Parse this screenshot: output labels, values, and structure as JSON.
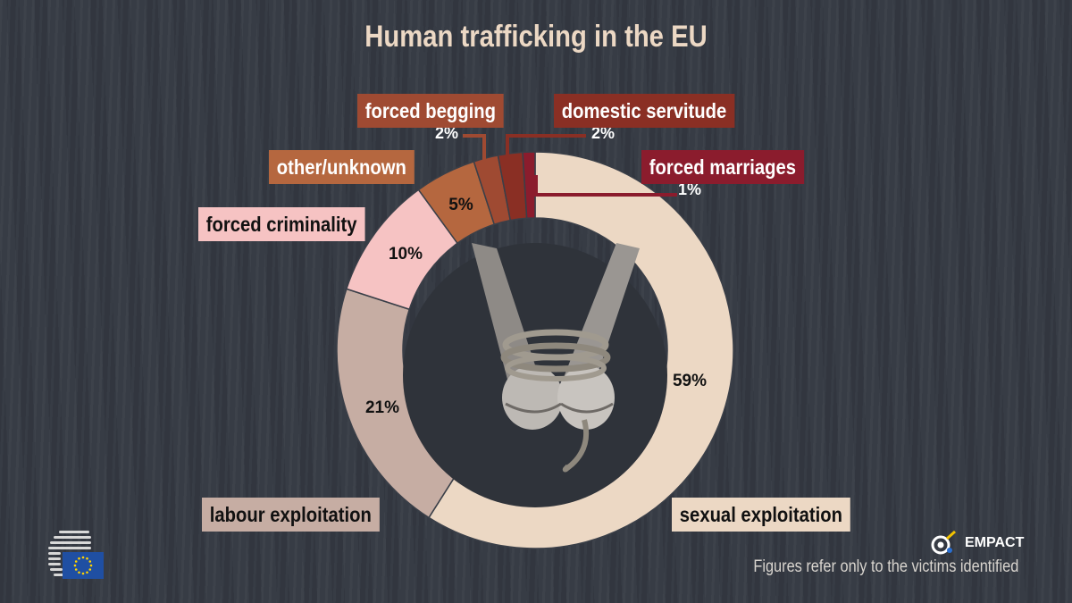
{
  "title": "Human trafficking in the EU",
  "footnote": "Figures refer only to the victims identified",
  "empact_logo_text": "EMPACT",
  "chart_data": {
    "type": "pie",
    "donut": true,
    "title": "Human trafficking in the EU",
    "unit": "%",
    "slices": [
      {
        "label": "sexual exploitation",
        "value": 59,
        "value_label": "59%",
        "color": "#ecd8c4",
        "text_color": "#111111"
      },
      {
        "label": "labour exploitation",
        "value": 21,
        "value_label": "21%",
        "color": "#c6ada3",
        "text_color": "#111111"
      },
      {
        "label": "forced criminality",
        "value": 10,
        "value_label": "10%",
        "color": "#f6c3c3",
        "text_color": "#111111"
      },
      {
        "label": "other/unknown",
        "value": 5,
        "value_label": "5%",
        "color": "#b5673f",
        "text_color": "#ffffff"
      },
      {
        "label": "forced begging",
        "value": 2,
        "value_label": "2%",
        "color": "#9f4a32",
        "text_color": "#ffffff"
      },
      {
        "label": "domestic servitude",
        "value": 2,
        "value_label": "2%",
        "color": "#8a2f24",
        "text_color": "#ffffff"
      },
      {
        "label": "forced marriages",
        "value": 1,
        "value_label": "1%",
        "color": "#8b1c2d",
        "text_color": "#ffffff"
      }
    ]
  },
  "center_image": "bound-hands-with-rope",
  "logos": [
    "eu-council-logo",
    "eu-flag-icon",
    "empact-logo"
  ]
}
